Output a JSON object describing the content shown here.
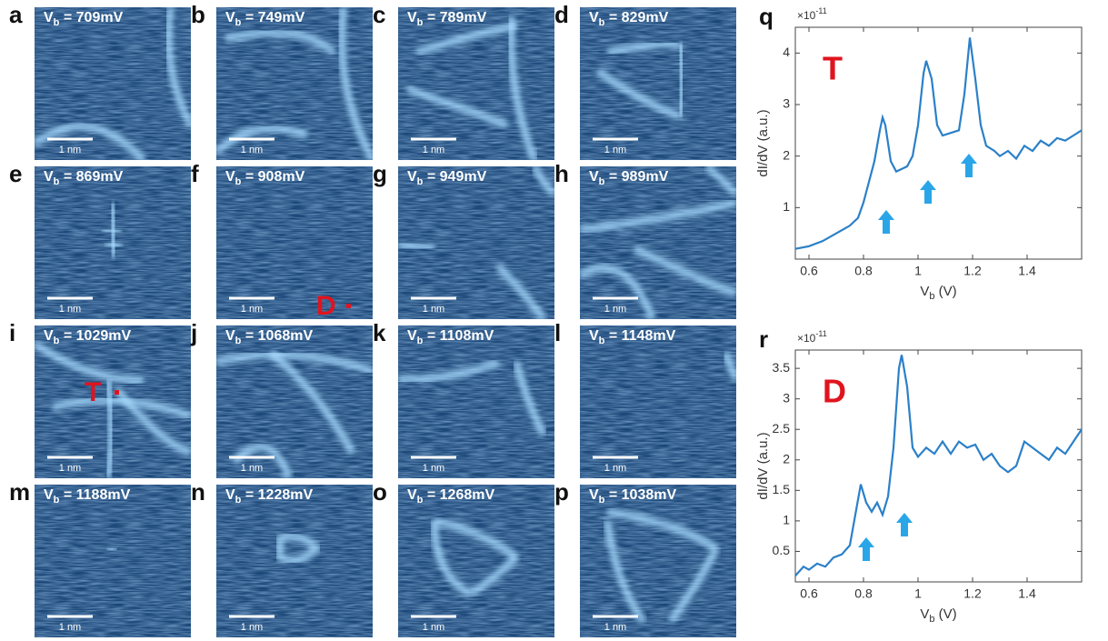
{
  "panels": [
    {
      "letter": "a",
      "bias": " = 709mV"
    },
    {
      "letter": "b",
      "bias": " = 749mV"
    },
    {
      "letter": "c",
      "bias": " = 789mV"
    },
    {
      "letter": "d",
      "bias": " = 829mV"
    },
    {
      "letter": "e",
      "bias": " = 869mV"
    },
    {
      "letter": "f",
      "bias": " = 908mV",
      "annotation": "D"
    },
    {
      "letter": "g",
      "bias": " = 949mV"
    },
    {
      "letter": "h",
      "bias": " = 989mV"
    },
    {
      "letter": "i",
      "bias": " = 1029mV",
      "annotation": "T"
    },
    {
      "letter": "j",
      "bias": " = 1068mV"
    },
    {
      "letter": "k",
      "bias": " = 1108mV"
    },
    {
      "letter": "l",
      "bias": " = 1148mV"
    },
    {
      "letter": "m",
      "bias": " = 1188mV"
    },
    {
      "letter": "n",
      "bias": " = 1228mV"
    },
    {
      "letter": "o",
      "bias": " = 1268mV"
    },
    {
      "letter": "p",
      "bias": " = 1038mV"
    }
  ],
  "bias_symbol": "V",
  "bias_subscript": "b",
  "scale_bar": "1 nm",
  "chart_data": [
    {
      "type": "line",
      "letter": "q",
      "annotation": "T",
      "color": "#2b80c8",
      "x": [
        0.55,
        0.6,
        0.65,
        0.7,
        0.75,
        0.78,
        0.8,
        0.82,
        0.84,
        0.86,
        0.87,
        0.88,
        0.9,
        0.92,
        0.94,
        0.96,
        0.98,
        1.0,
        1.02,
        1.03,
        1.05,
        1.07,
        1.09,
        1.12,
        1.15,
        1.17,
        1.19,
        1.21,
        1.23,
        1.25,
        1.28,
        1.3,
        1.33,
        1.36,
        1.39,
        1.42,
        1.45,
        1.48,
        1.51,
        1.54,
        1.57,
        1.6
      ],
      "values": [
        0.2,
        0.25,
        0.35,
        0.5,
        0.65,
        0.8,
        1.1,
        1.5,
        1.9,
        2.5,
        2.75,
        2.6,
        1.9,
        1.7,
        1.75,
        1.8,
        2.0,
        2.6,
        3.6,
        3.85,
        3.5,
        2.6,
        2.4,
        2.45,
        2.5,
        3.2,
        4.3,
        3.5,
        2.6,
        2.2,
        2.1,
        2.0,
        2.1,
        1.95,
        2.2,
        2.1,
        2.3,
        2.2,
        2.35,
        2.3,
        2.4,
        2.5
      ],
      "xlim": [
        0.55,
        1.6
      ],
      "xticks": [
        0.6,
        0.8,
        1,
        1.2,
        1.4
      ],
      "ylim": [
        0,
        4.5
      ],
      "yticks": [
        1,
        2,
        3,
        4
      ],
      "ylabel": "dI/dV (a.u.)",
      "xlabel": {
        "symbol": "V",
        "subscript": "b",
        "unit": " (V)"
      },
      "y_scale": {
        "base": "×10",
        "exponent": "-11"
      }
    },
    {
      "type": "line",
      "letter": "r",
      "annotation": "D",
      "color": "#2b80c8",
      "x": [
        0.55,
        0.58,
        0.6,
        0.63,
        0.66,
        0.69,
        0.72,
        0.75,
        0.77,
        0.79,
        0.81,
        0.83,
        0.85,
        0.87,
        0.89,
        0.91,
        0.93,
        0.94,
        0.96,
        0.98,
        1.0,
        1.03,
        1.06,
        1.09,
        1.12,
        1.15,
        1.18,
        1.21,
        1.24,
        1.27,
        1.3,
        1.33,
        1.36,
        1.39,
        1.42,
        1.45,
        1.48,
        1.51,
        1.54,
        1.57,
        1.6
      ],
      "values": [
        0.1,
        0.25,
        0.2,
        0.3,
        0.25,
        0.4,
        0.45,
        0.6,
        1.1,
        1.6,
        1.3,
        1.15,
        1.3,
        1.1,
        1.4,
        2.2,
        3.5,
        3.72,
        3.2,
        2.2,
        2.05,
        2.2,
        2.1,
        2.3,
        2.1,
        2.3,
        2.2,
        2.25,
        2.0,
        2.1,
        1.9,
        1.8,
        1.9,
        2.3,
        2.2,
        2.1,
        2.0,
        2.2,
        2.1,
        2.3,
        2.5
      ],
      "xlim": [
        0.55,
        1.6
      ],
      "xticks": [
        0.6,
        0.8,
        1,
        1.2,
        1.4
      ],
      "ylim": [
        0,
        3.8
      ],
      "yticks": [
        0.5,
        1,
        1.5,
        2,
        2.5,
        3,
        3.5
      ],
      "ylabel": "dI/dV (a.u.)",
      "xlabel": {
        "symbol": "V",
        "subscript": "b",
        "unit": " (V)"
      },
      "y_scale": {
        "base": "×10",
        "exponent": "-11"
      }
    }
  ]
}
